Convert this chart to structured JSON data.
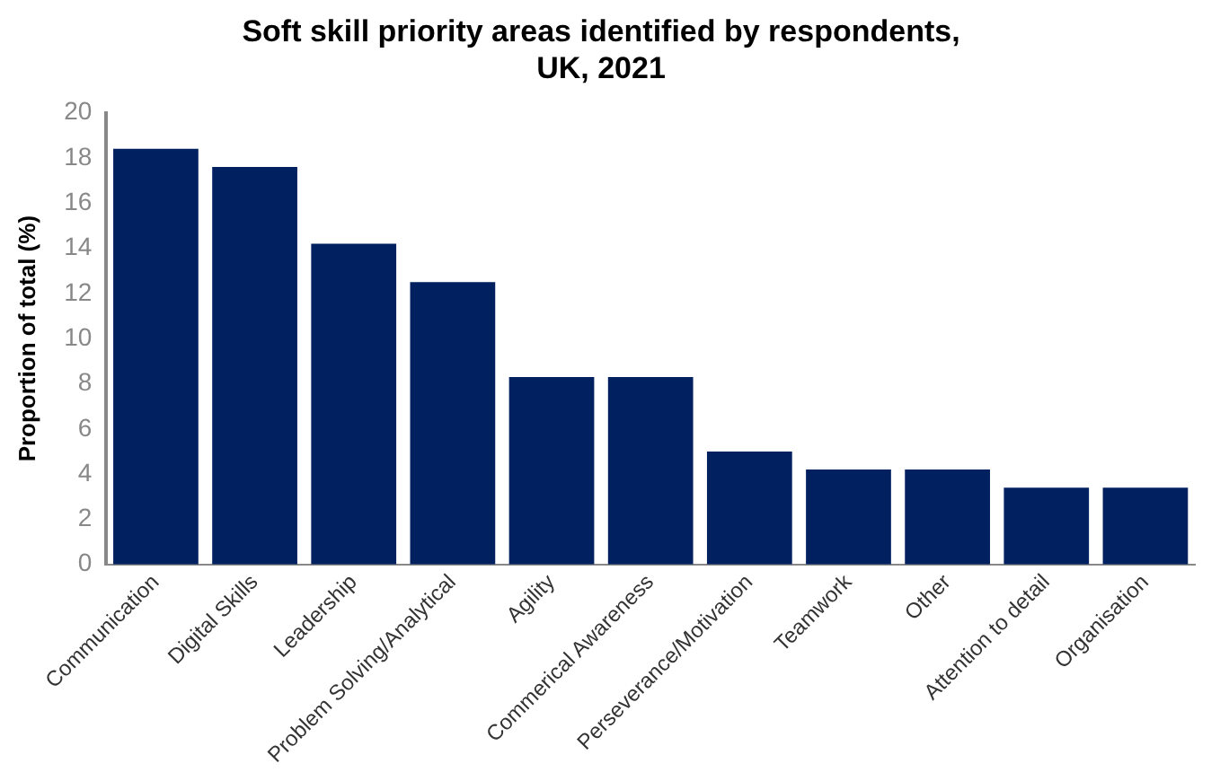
{
  "chart_data": {
    "type": "bar",
    "title": [
      "Soft skill priority areas identified by respondents,",
      "UK, 2021"
    ],
    "ylabel": "Proportion of total (%)",
    "categories": [
      "Communication",
      "Digital Skills",
      "Leadership",
      "Problem Solving/Analytical",
      "Agility",
      "Commerical Awareness",
      "Perseverance/Motivation",
      "Teamwork",
      "Other",
      "Attention to detail",
      "Organisation"
    ],
    "values": [
      18.4,
      17.6,
      14.2,
      12.5,
      8.3,
      8.3,
      5.0,
      4.2,
      4.2,
      3.4,
      3.4
    ],
    "color": "#002060",
    "ylim": [
      0,
      20
    ],
    "yticks": [
      0,
      2,
      4,
      6,
      8,
      10,
      12,
      14,
      16,
      18,
      20
    ],
    "grid": false,
    "legend": false
  }
}
